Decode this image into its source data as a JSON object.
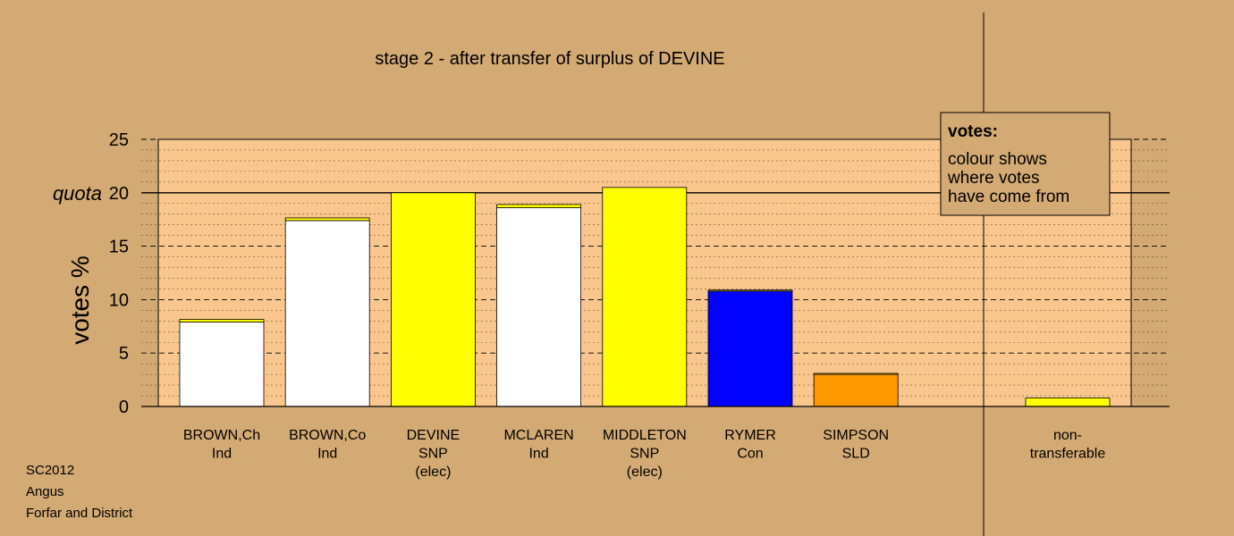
{
  "chart_data": {
    "type": "bar",
    "title": "stage 2 - after transfer of surplus of DEVINE",
    "ylabel": "votes %",
    "ylim": [
      0,
      25
    ],
    "yticks": [
      0,
      5,
      10,
      15,
      20,
      25
    ],
    "quota": {
      "label": "quota",
      "value": 20
    },
    "bars": [
      {
        "label": [
          "BROWN,Ch",
          "Ind"
        ],
        "segments": [
          {
            "value": 7.9,
            "color": "#ffffff"
          },
          {
            "value": 0.25,
            "color": "#ffff00"
          }
        ]
      },
      {
        "label": [
          "BROWN,Co",
          "Ind"
        ],
        "segments": [
          {
            "value": 17.4,
            "color": "#ffffff"
          },
          {
            "value": 0.25,
            "color": "#ffff00"
          }
        ]
      },
      {
        "label": [
          "DEVINE",
          "SNP",
          "(elec)"
        ],
        "segments": [
          {
            "value": 20.0,
            "color": "#ffff00"
          }
        ]
      },
      {
        "label": [
          "MCLAREN",
          "Ind"
        ],
        "segments": [
          {
            "value": 18.6,
            "color": "#ffffff"
          },
          {
            "value": 0.3,
            "color": "#ffff00"
          }
        ]
      },
      {
        "label": [
          "MIDDLETON",
          "SNP",
          "(elec)"
        ],
        "segments": [
          {
            "value": 20.5,
            "color": "#ffff00"
          }
        ]
      },
      {
        "label": [
          "RYMER",
          "Con"
        ],
        "segments": [
          {
            "value": 10.8,
            "color": "#0000ff"
          },
          {
            "value": 0.1,
            "color": "#ffff00"
          }
        ]
      },
      {
        "label": [
          "SIMPSON",
          "SLD"
        ],
        "segments": [
          {
            "value": 3.0,
            "color": "#ff9900"
          },
          {
            "value": 0.1,
            "color": "#ffff00"
          }
        ]
      }
    ],
    "nontransferable": {
      "label": [
        "non-",
        "transferable"
      ],
      "value": 0.8,
      "color": "#ffff00"
    },
    "legend": {
      "title": "votes:",
      "lines": [
        "colour shows",
        "where votes",
        "have come from"
      ]
    },
    "colors": {
      "background": "#d4aa74",
      "plot_background": "#f9c78e"
    }
  },
  "footer": [
    "SC2012",
    "Angus",
    "Forfar and District"
  ]
}
